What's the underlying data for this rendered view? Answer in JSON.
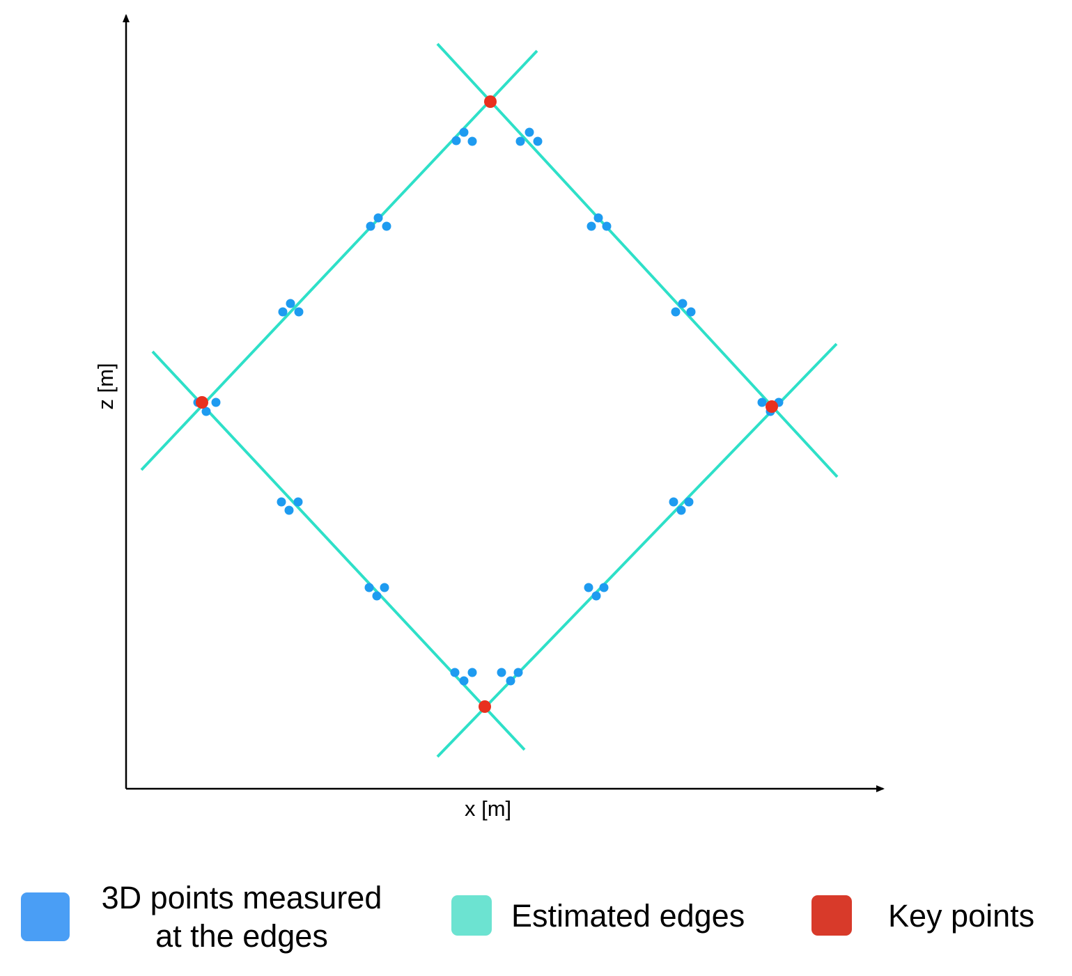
{
  "axes": {
    "x_label": "x [m]",
    "z_label": "z [m]"
  },
  "colors": {
    "axis": "#000000",
    "measured_points": "#1E9BF0",
    "estimated_edges": "#2EE0C8",
    "key_points": "#E8301E",
    "legend_measured": "#4A9EF5",
    "legend_edges": "#6CE3D1",
    "legend_key": "#D83A2A"
  },
  "legend": {
    "measured_line1": "3D points measured",
    "measured_line2": "at the edges",
    "edges": "Estimated edges",
    "key_points": "Key points"
  }
}
